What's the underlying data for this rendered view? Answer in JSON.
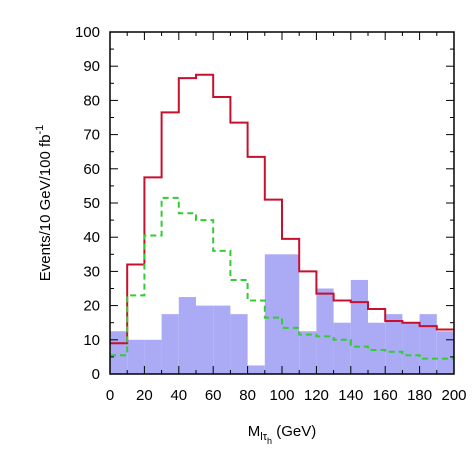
{
  "chart_data": {
    "type": "histogram",
    "xlabel_main": "M",
    "xlabel_sub1": "l",
    "xlabel_sub2": "τ",
    "xlabel_sub3": "h",
    "xlabel_unit": " (GeV)",
    "ylabel_main": "Events/10 GeV/100 fb",
    "ylabel_sup": "-1",
    "xlim": [
      0,
      200
    ],
    "ylim": [
      0,
      100
    ],
    "bin_width": 10,
    "x_ticks": [
      "0",
      "20",
      "40",
      "60",
      "80",
      "100",
      "120",
      "140",
      "160",
      "180",
      "200"
    ],
    "y_ticks": [
      "0",
      "10",
      "20",
      "30",
      "40",
      "50",
      "60",
      "70",
      "80",
      "90",
      "100"
    ],
    "bin_edges": [
      0,
      10,
      20,
      30,
      40,
      50,
      60,
      70,
      80,
      90,
      100,
      110,
      120,
      130,
      140,
      150,
      160,
      170,
      180,
      190,
      200
    ],
    "series": [
      {
        "style": "filled",
        "color": "#aaaaf5",
        "values": [
          12.5,
          10,
          10,
          17.5,
          22.5,
          20,
          20,
          17.5,
          2.5,
          35,
          35,
          12.5,
          25,
          15,
          27.5,
          15,
          17.5,
          15,
          17.5,
          12.5
        ]
      },
      {
        "style": "solid",
        "color": "#c8102e",
        "values": [
          9,
          32,
          57.5,
          76.5,
          86.5,
          87.5,
          81,
          73.5,
          63.5,
          51,
          39.5,
          30,
          23.5,
          21.5,
          21,
          19,
          15.5,
          15,
          14,
          13
        ]
      },
      {
        "style": "dashed",
        "color": "#33cc33",
        "values": [
          5.5,
          23,
          40.5,
          51.5,
          47,
          45,
          36,
          27.5,
          21.5,
          16.5,
          13.5,
          11.5,
          11,
          10,
          8,
          7,
          6.5,
          5.5,
          4.5,
          4.5
        ]
      }
    ]
  }
}
